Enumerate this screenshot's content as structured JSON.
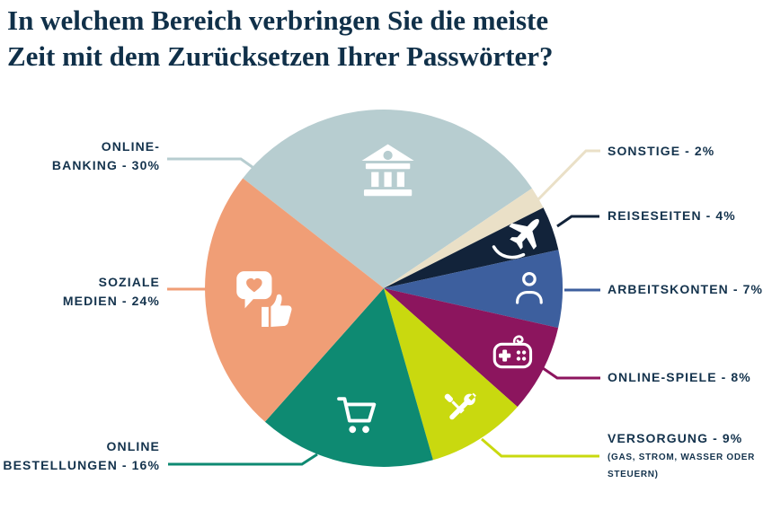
{
  "title": {
    "line1": "In welchem Bereich verbringen Sie die meiste",
    "line2": "Zeit mit dem Zurücksetzen Ihrer Passwörter?"
  },
  "colors": {
    "title_text": "#103049",
    "label_text": "#14334d",
    "background": "#ffffff",
    "icon": "#ffffff"
  },
  "chart_data": {
    "type": "pie",
    "title": "In welchem Bereich verbringen Sie die meiste Zeit mit dem Zurücksetzen Ihrer Passwörter?",
    "unit": "%",
    "direction": "clockwise",
    "start_angle_deg": -52,
    "legend_position": "callout-labels",
    "slices": [
      {
        "key": "online_banking",
        "label": "Online-Banking",
        "value_pct": 30,
        "color": "#b7cdd0",
        "icon": "bank-icon",
        "icon_rf": 0.66,
        "icon_size": 62
      },
      {
        "key": "sonstige",
        "label": "Sonstige",
        "value_pct": 2,
        "color": "#eae0c7",
        "icon": null,
        "icon_rf": 0,
        "icon_size": 0
      },
      {
        "key": "reiseseiten",
        "label": "Reiseseiten",
        "value_pct": 4,
        "color": "#12233a",
        "icon": "airplane-icon",
        "icon_rf": 0.8,
        "icon_size": 66
      },
      {
        "key": "arbeitskonten",
        "label": "Arbeitskonten",
        "value_pct": 7,
        "color": "#3d5f9e",
        "icon": "person-icon",
        "icon_rf": 0.81,
        "icon_size": 46
      },
      {
        "key": "online_spiele",
        "label": "Online-Spiele",
        "value_pct": 8,
        "color": "#8c155e",
        "icon": "gamepad-icon",
        "icon_rf": 0.81,
        "icon_size": 56
      },
      {
        "key": "versorgung",
        "label": "Versorgung (Gas, Strom, Wasser oder Steuern)",
        "value_pct": 9,
        "color": "#c9d90f",
        "icon": "tools-icon",
        "icon_rf": 0.8,
        "icon_size": 50
      },
      {
        "key": "online_bestellungen",
        "label": "Online Bestellungen",
        "value_pct": 16,
        "color": "#0e8a72",
        "icon": "cart-icon",
        "icon_rf": 0.73,
        "icon_size": 54
      },
      {
        "key": "soziale_medien",
        "label": "Soziale Medien",
        "value_pct": 24,
        "color": "#f09e76",
        "icon": "heart-thumbsup-icon",
        "icon_rf": 0.67,
        "icon_size": 66
      }
    ]
  },
  "callouts": {
    "online_banking": {
      "line1": "ONLINE-",
      "line2": "BANKING - 30%"
    },
    "soziale_medien": {
      "line1": "SOZIALE",
      "line2": "MEDIEN - 24%"
    },
    "online_bestellungen": {
      "line1": "ONLINE",
      "line2": "BESTELLUNGEN - 16%"
    },
    "sonstige": {
      "line1": "SONSTIGE - 2%"
    },
    "reiseseiten": {
      "line1": "REISESEITEN - 4%"
    },
    "arbeitskonten": {
      "line1": "ARBEITSKONTEN - 7%"
    },
    "online_spiele": {
      "line1": "ONLINE-SPIELE - 8%"
    },
    "versorgung": {
      "line1": "VERSORGUNG - 9%",
      "sub1": "(GAS, STROM, WASSER ODER",
      "sub2": "STEUERN)"
    }
  }
}
